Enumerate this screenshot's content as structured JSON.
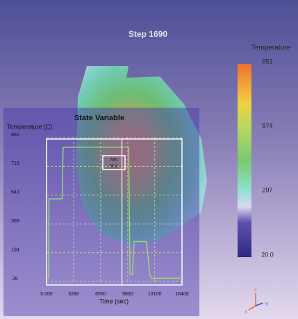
{
  "header": {
    "title": "Step 1690"
  },
  "colorbar": {
    "title": "Temperature",
    "range": [
      20,
      851
    ],
    "ticks": [
      851,
      574,
      297,
      {
        "value": 20,
        "label": "20.0"
      }
    ]
  },
  "chart_data": {
    "type": "line",
    "title": "State Variable",
    "y_label": "Temperature (C)",
    "x_label": "Time (sec)",
    "x": [
      0,
      250,
      300,
      1900,
      2000,
      8900,
      9950,
      10100,
      10400,
      10600,
      12100,
      12500,
      12700,
      16400
    ],
    "series": [
      {
        "color": "#98d67a",
        "values": [
          40,
          40,
          521,
          521,
          834,
          834,
          834,
          62,
          62,
          262,
          262,
          62,
          40,
          40
        ]
      }
    ],
    "xlim": [
      0,
      16400
    ],
    "ylim": [
      20,
      892
    ],
    "xticks": [
      {
        "value": 0,
        "label": "0.000"
      },
      3280,
      6550,
      9830,
      13100,
      16400
    ],
    "yticks": [
      20,
      194,
      369,
      543,
      718,
      892
    ],
    "grid": true,
    "marker_x": 9130,
    "annotations": [
      "Min",
      "Max"
    ]
  },
  "axes_triad": {
    "labels": [
      "Z",
      "X",
      "Y"
    ]
  }
}
